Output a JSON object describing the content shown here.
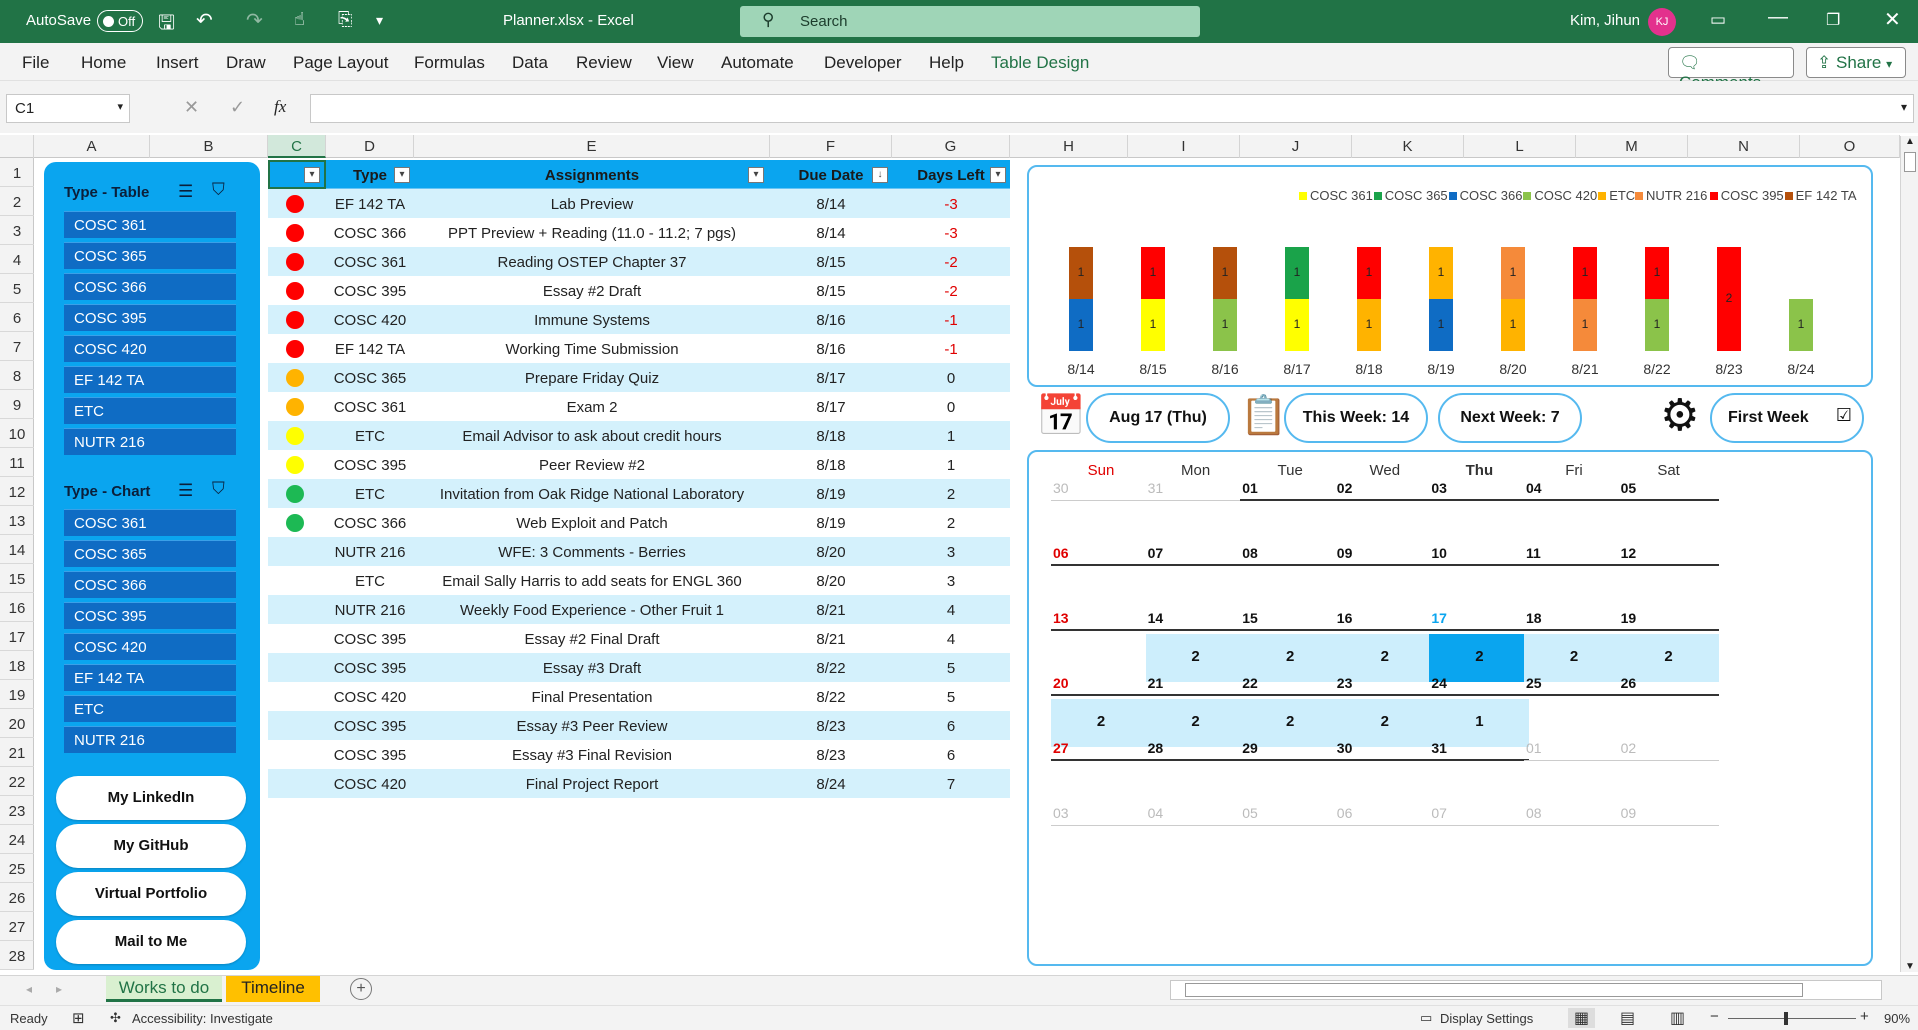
{
  "titlebar": {
    "autosave_label": "AutoSave",
    "autosave_state": "Off",
    "doc_title": "Planner.xlsx  -  Excel",
    "search_placeholder": "Search",
    "user_name": "Kim, Jihun",
    "user_initials": "KJ"
  },
  "menu": {
    "items": [
      "File",
      "Home",
      "Insert",
      "Draw",
      "Page Layout",
      "Formulas",
      "Data",
      "Review",
      "View",
      "Automate",
      "Developer",
      "Help",
      "Table Design"
    ],
    "comments": "Comments",
    "share": "Share"
  },
  "formula_bar": {
    "name_box": "C1",
    "fx": "fx",
    "formula": ""
  },
  "columns": [
    "A",
    "B",
    "C",
    "D",
    "E",
    "F",
    "G",
    "H",
    "I",
    "J",
    "K",
    "L",
    "M",
    "N",
    "O"
  ],
  "rows": [
    "1",
    "2",
    "3",
    "4",
    "5",
    "6",
    "7",
    "8",
    "9",
    "10",
    "11",
    "12",
    "13",
    "14",
    "15",
    "16",
    "17",
    "18",
    "19",
    "20",
    "21",
    "22",
    "23",
    "24",
    "25",
    "26",
    "27",
    "28"
  ],
  "left_panel": {
    "table_slicer_title": "Type - Table",
    "table_slicer_items": [
      "COSC 361",
      "COSC 365",
      "COSC 366",
      "COSC 395",
      "COSC 420",
      "EF 142 TA",
      "ETC",
      "NUTR 216"
    ],
    "chart_slicer_title": "Type - Chart",
    "chart_slicer_items": [
      "COSC 361",
      "COSC 365",
      "COSC 366",
      "COSC 395",
      "COSC 420",
      "EF 142 TA",
      "ETC",
      "NUTR 216"
    ],
    "links": [
      "My LinkedIn",
      "My GitHub",
      "Virtual Portfolio",
      "Mail to Me"
    ]
  },
  "table": {
    "headers": {
      "type": "Type",
      "assignments": "Assignments",
      "due": "Due Date",
      "days_left": "Days Left"
    },
    "rows": [
      {
        "dot": "#ff0000",
        "type": "EF 142 TA",
        "assignment": "Lab Preview",
        "due": "8/14",
        "days": "-3"
      },
      {
        "dot": "#ff0000",
        "type": "COSC 366",
        "assignment": "PPT Preview + Reading (11.0 - 11.2; 7 pgs)",
        "due": "8/14",
        "days": "-3"
      },
      {
        "dot": "#ff0000",
        "type": "COSC 361",
        "assignment": "Reading OSTEP Chapter 37",
        "due": "8/15",
        "days": "-2"
      },
      {
        "dot": "#ff0000",
        "type": "COSC 395",
        "assignment": "Essay #2 Draft",
        "due": "8/15",
        "days": "-2"
      },
      {
        "dot": "#ff0000",
        "type": "COSC 420",
        "assignment": "Immune Systems",
        "due": "8/16",
        "days": "-1"
      },
      {
        "dot": "#ff0000",
        "type": "EF 142 TA",
        "assignment": "Working Time Submission",
        "due": "8/16",
        "days": "-1"
      },
      {
        "dot": "#ffb300",
        "type": "COSC 365",
        "assignment": "Prepare Friday Quiz",
        "due": "8/17",
        "days": "0"
      },
      {
        "dot": "#ffb300",
        "type": "COSC 361",
        "assignment": "Exam 2",
        "due": "8/17",
        "days": "0"
      },
      {
        "dot": "#ffff00",
        "type": "ETC",
        "assignment": "Email Advisor to ask about credit hours",
        "due": "8/18",
        "days": "1"
      },
      {
        "dot": "#ffff00",
        "type": "COSC 395",
        "assignment": "Peer Review #2",
        "due": "8/18",
        "days": "1"
      },
      {
        "dot": "#1db954",
        "type": "ETC",
        "assignment": "Invitation from Oak Ridge National Laboratory",
        "due": "8/19",
        "days": "2"
      },
      {
        "dot": "#1db954",
        "type": "COSC 366",
        "assignment": "Web Exploit and Patch",
        "due": "8/19",
        "days": "2"
      },
      {
        "dot": "",
        "type": "NUTR 216",
        "assignment": "WFE: 3 Comments - Berries",
        "due": "8/20",
        "days": "3"
      },
      {
        "dot": "",
        "type": "ETC",
        "assignment": "Email Sally Harris to add seats for ENGL 360",
        "due": "8/20",
        "days": "3"
      },
      {
        "dot": "",
        "type": "NUTR 216",
        "assignment": "Weekly Food Experience - Other Fruit 1",
        "due": "8/21",
        "days": "4"
      },
      {
        "dot": "",
        "type": "COSC 395",
        "assignment": "Essay #2 Final Draft",
        "due": "8/21",
        "days": "4"
      },
      {
        "dot": "",
        "type": "COSC 395",
        "assignment": "Essay #3 Draft",
        "due": "8/22",
        "days": "5"
      },
      {
        "dot": "",
        "type": "COSC 420",
        "assignment": "Final Presentation",
        "due": "8/22",
        "days": "5"
      },
      {
        "dot": "",
        "type": "COSC 395",
        "assignment": "Essay #3 Peer Review",
        "due": "8/23",
        "days": "6"
      },
      {
        "dot": "",
        "type": "COSC 395",
        "assignment": "Essay #3 Final Revision",
        "due": "8/23",
        "days": "6"
      },
      {
        "dot": "",
        "type": "COSC 420",
        "assignment": "Final Project Report",
        "due": "8/24",
        "days": "7"
      }
    ]
  },
  "chart_data": {
    "type": "bar",
    "stacked": true,
    "legend_position": "top-right",
    "categories": [
      "8/14",
      "8/15",
      "8/16",
      "8/17",
      "8/18",
      "8/19",
      "8/20",
      "8/21",
      "8/22",
      "8/23",
      "8/24"
    ],
    "series": [
      {
        "name": "COSC 361",
        "color": "#ffff00",
        "values": [
          0,
          1,
          0,
          1,
          0,
          0,
          0,
          0,
          0,
          0,
          0
        ]
      },
      {
        "name": "COSC 365",
        "color": "#1aa34a",
        "values": [
          0,
          0,
          0,
          1,
          0,
          0,
          0,
          0,
          0,
          0,
          0
        ]
      },
      {
        "name": "COSC 366",
        "color": "#0f6cc4",
        "values": [
          1,
          0,
          0,
          0,
          0,
          1,
          0,
          0,
          0,
          0,
          0
        ]
      },
      {
        "name": "COSC 420",
        "color": "#8bc34a",
        "values": [
          0,
          0,
          1,
          0,
          0,
          0,
          0,
          0,
          1,
          0,
          1
        ]
      },
      {
        "name": "ETC",
        "color": "#ffb300",
        "values": [
          0,
          0,
          0,
          0,
          1,
          1,
          1,
          0,
          0,
          0,
          0
        ]
      },
      {
        "name": "NUTR 216",
        "color": "#f58a3a",
        "values": [
          0,
          0,
          0,
          0,
          0,
          0,
          1,
          1,
          0,
          0,
          0
        ]
      },
      {
        "name": "COSC 395",
        "color": "#ff0000",
        "values": [
          0,
          1,
          0,
          0,
          1,
          0,
          0,
          1,
          1,
          2,
          0
        ]
      },
      {
        "name": "EF 142 TA",
        "color": "#b5500b",
        "values": [
          1,
          0,
          1,
          0,
          0,
          0,
          0,
          0,
          0,
          0,
          0
        ]
      }
    ]
  },
  "info": {
    "today": "Aug 17 (Thu)",
    "this_week": "This Week: 14",
    "next_week": "Next Week: 7",
    "first_week": "First Week",
    "first_week_checked": "☑"
  },
  "calendar": {
    "weekdays": [
      "Sun",
      "Mon",
      "Tue",
      "Wed",
      "Thu",
      "Fri",
      "Sat"
    ],
    "weeks": [
      [
        {
          "d": "30",
          "s": "grey"
        },
        {
          "d": "31",
          "s": "grey"
        },
        {
          "d": "01"
        },
        {
          "d": "02"
        },
        {
          "d": "03"
        },
        {
          "d": "04"
        },
        {
          "d": "05"
        }
      ],
      [
        {
          "d": "06",
          "s": "red"
        },
        {
          "d": "07"
        },
        {
          "d": "08"
        },
        {
          "d": "09"
        },
        {
          "d": "10"
        },
        {
          "d": "11"
        },
        {
          "d": "12"
        }
      ],
      [
        {
          "d": "13",
          "s": "red"
        },
        {
          "d": "14",
          "c": "2"
        },
        {
          "d": "15",
          "c": "2"
        },
        {
          "d": "16",
          "c": "2"
        },
        {
          "d": "17",
          "s": "today",
          "c": "2"
        },
        {
          "d": "18",
          "c": "2"
        },
        {
          "d": "19",
          "c": "2"
        }
      ],
      [
        {
          "d": "20",
          "s": "red",
          "c": "2"
        },
        {
          "d": "21",
          "c": "2"
        },
        {
          "d": "22",
          "c": "2"
        },
        {
          "d": "23",
          "c": "2"
        },
        {
          "d": "24",
          "c": "1"
        },
        {
          "d": "25"
        },
        {
          "d": "26"
        }
      ],
      [
        {
          "d": "27",
          "s": "red"
        },
        {
          "d": "28"
        },
        {
          "d": "29"
        },
        {
          "d": "30"
        },
        {
          "d": "31"
        },
        {
          "d": "01",
          "s": "grey"
        },
        {
          "d": "02",
          "s": "grey"
        }
      ],
      [
        {
          "d": "03",
          "s": "grey"
        },
        {
          "d": "04",
          "s": "grey"
        },
        {
          "d": "05",
          "s": "grey"
        },
        {
          "d": "06",
          "s": "grey"
        },
        {
          "d": "07",
          "s": "grey"
        },
        {
          "d": "08",
          "s": "grey"
        },
        {
          "d": "09",
          "s": "grey"
        }
      ]
    ]
  },
  "sheet_tabs": [
    "Works to do",
    "Timeline"
  ],
  "status": {
    "ready": "Ready",
    "accessibility": "Accessibility: Investigate",
    "display_settings": "Display Settings",
    "zoom": "90%"
  }
}
